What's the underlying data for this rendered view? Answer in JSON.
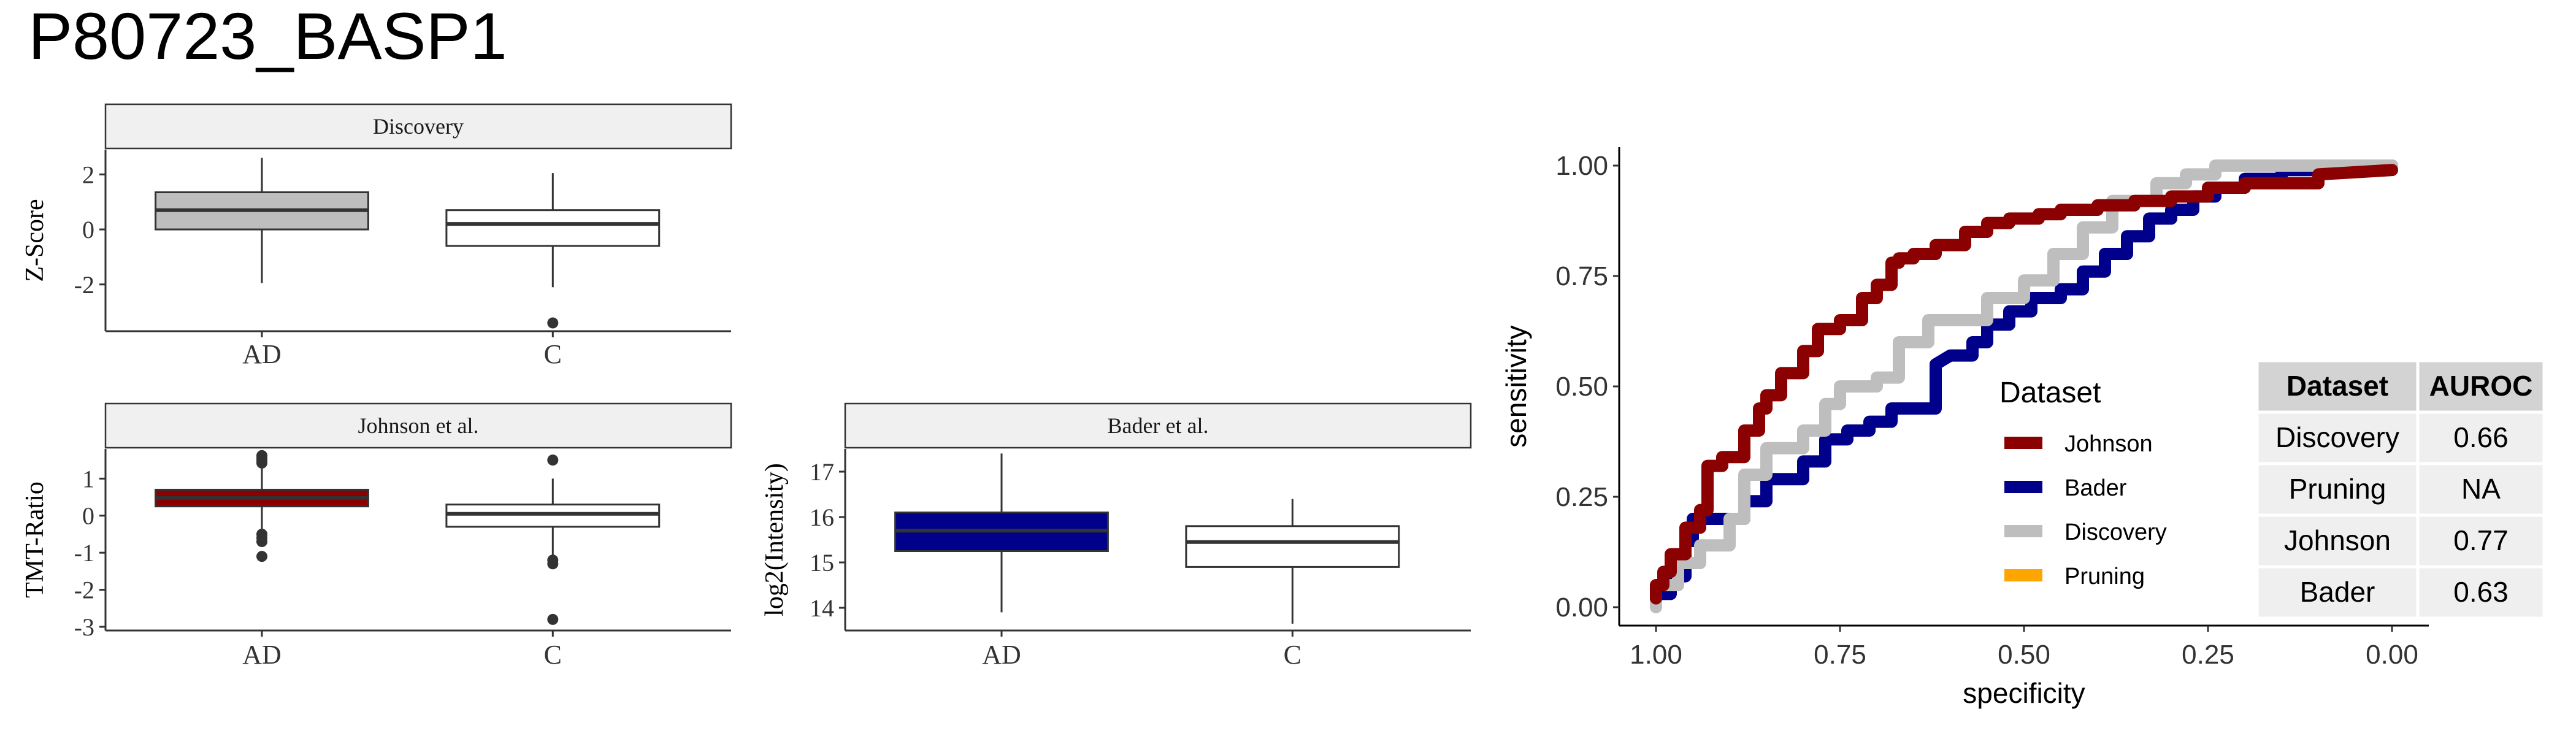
{
  "page": {
    "title": "P80723_BASP1"
  },
  "colors": {
    "johnson": "#8b0000",
    "bader": "#00008b",
    "discovery": "#bebebe",
    "pruning": "#ffa500",
    "strip": "#f0f0f0",
    "table_header": "#d3d3d3",
    "table_cell": "#efefef"
  },
  "chart_data": [
    {
      "type": "box",
      "panel": "Discovery",
      "ylabel": "Z-Score",
      "categories": [
        "AD",
        "C"
      ],
      "yticks": [
        "2",
        "0",
        "-2"
      ],
      "ylim": [
        -3.7,
        2.9
      ],
      "boxes": [
        {
          "category": "AD",
          "fill": "#bebebe",
          "min": -1.95,
          "q1": 0.0,
          "median": 0.7,
          "q3": 1.35,
          "max": 2.6,
          "outliers": []
        },
        {
          "category": "C",
          "fill": "#ffffff",
          "min": -2.1,
          "q1": -0.6,
          "median": 0.2,
          "q3": 0.7,
          "max": 2.05,
          "outliers": [
            -3.4
          ]
        }
      ]
    },
    {
      "type": "box",
      "panel": "Johnson et al.",
      "ylabel": "TMT-Ratio",
      "categories": [
        "AD",
        "C"
      ],
      "yticks": [
        "1",
        "0",
        "-1",
        "-2",
        "-3"
      ],
      "ylim": [
        -3.1,
        1.8
      ],
      "boxes": [
        {
          "category": "AD",
          "fill": "#8b0000",
          "min": -0.45,
          "q1": 0.25,
          "median": 0.48,
          "q3": 0.7,
          "max": 1.3,
          "outliers": [
            1.62,
            1.55,
            1.48,
            1.42,
            -0.5,
            -0.6,
            -0.7,
            -1.1
          ]
        },
        {
          "category": "C",
          "fill": "#ffffff",
          "min": -1.1,
          "q1": -0.3,
          "median": 0.05,
          "q3": 0.3,
          "max": 1.0,
          "outliers": [
            1.5,
            -1.2,
            -1.3,
            -2.8
          ]
        }
      ]
    },
    {
      "type": "box",
      "panel": "Bader et al.",
      "ylabel": "log2(Intensity)",
      "categories": [
        "AD",
        "C"
      ],
      "yticks": [
        "17",
        "16",
        "15",
        "14"
      ],
      "ylim": [
        13.5,
        17.5
      ],
      "boxes": [
        {
          "category": "AD",
          "fill": "#00008b",
          "min": 13.9,
          "q1": 15.25,
          "median": 15.7,
          "q3": 16.1,
          "max": 17.4,
          "outliers": []
        },
        {
          "category": "C",
          "fill": "#ffffff",
          "min": 13.65,
          "q1": 14.9,
          "median": 15.45,
          "q3": 15.8,
          "max": 16.4,
          "outliers": []
        }
      ]
    },
    {
      "type": "line",
      "subtype": "roc",
      "xlabel": "specificity",
      "ylabel": "sensitivity",
      "x_reversed": true,
      "xlim": [
        1.0,
        0.0
      ],
      "ylim": [
        0.0,
        1.0
      ],
      "xticks": [
        "1.00",
        "0.75",
        "0.50",
        "0.25",
        "0.00"
      ],
      "yticks": [
        "1.00",
        "0.75",
        "0.50",
        "0.25",
        "0.00"
      ],
      "legend": {
        "title": "Dataset",
        "entries": [
          "Johnson",
          "Bader",
          "Discovery",
          "Pruning"
        ],
        "placement": "bottom-center"
      },
      "series": [
        {
          "name": "Bader",
          "x": [
            1.0,
            1.0,
            0.98,
            0.98,
            0.96,
            0.96,
            0.95,
            0.95,
            0.88,
            0.88,
            0.85,
            0.85,
            0.8,
            0.8,
            0.77,
            0.77,
            0.74,
            0.74,
            0.71,
            0.71,
            0.68,
            0.68,
            0.62,
            0.62,
            0.6,
            0.57,
            0.57,
            0.55,
            0.55,
            0.52,
            0.52,
            0.49,
            0.49,
            0.45,
            0.45,
            0.42,
            0.42,
            0.39,
            0.39,
            0.36,
            0.36,
            0.33,
            0.33,
            0.3,
            0.3,
            0.27,
            0.27,
            0.24,
            0.24,
            0.2,
            0.2,
            0.15,
            0.15,
            0.1,
            0.1,
            0.05,
            0.0
          ],
          "y": [
            0.01,
            0.03,
            0.03,
            0.07,
            0.07,
            0.15,
            0.15,
            0.2,
            0.2,
            0.24,
            0.24,
            0.29,
            0.29,
            0.33,
            0.33,
            0.38,
            0.38,
            0.4,
            0.4,
            0.42,
            0.42,
            0.45,
            0.45,
            0.55,
            0.57,
            0.57,
            0.6,
            0.6,
            0.64,
            0.64,
            0.67,
            0.67,
            0.7,
            0.7,
            0.72,
            0.72,
            0.76,
            0.76,
            0.8,
            0.8,
            0.84,
            0.84,
            0.88,
            0.88,
            0.9,
            0.9,
            0.93,
            0.93,
            0.95,
            0.95,
            0.97,
            0.97,
            0.99,
            0.99,
            1.0,
            1.0,
            1.0
          ]
        },
        {
          "name": "Discovery",
          "x": [
            1.0,
            1.0,
            0.97,
            0.97,
            0.94,
            0.94,
            0.9,
            0.9,
            0.88,
            0.88,
            0.85,
            0.85,
            0.8,
            0.8,
            0.77,
            0.77,
            0.75,
            0.75,
            0.7,
            0.7,
            0.67,
            0.67,
            0.63,
            0.63,
            0.55,
            0.55,
            0.5,
            0.5,
            0.46,
            0.46,
            0.42,
            0.42,
            0.38,
            0.38,
            0.32,
            0.32,
            0.28,
            0.28,
            0.24,
            0.24,
            0.18,
            0.18,
            0.12,
            0.12,
            0.06,
            0.0
          ],
          "y": [
            0.0,
            0.05,
            0.05,
            0.1,
            0.1,
            0.14,
            0.14,
            0.2,
            0.2,
            0.3,
            0.3,
            0.36,
            0.36,
            0.4,
            0.4,
            0.46,
            0.46,
            0.5,
            0.5,
            0.52,
            0.52,
            0.6,
            0.6,
            0.65,
            0.65,
            0.7,
            0.7,
            0.74,
            0.74,
            0.8,
            0.8,
            0.86,
            0.86,
            0.92,
            0.92,
            0.96,
            0.96,
            0.98,
            0.98,
            1.0,
            1.0,
            1.0,
            1.0,
            1.0,
            1.0,
            1.0
          ]
        },
        {
          "name": "Johnson",
          "x": [
            1.0,
            1.0,
            0.99,
            0.99,
            0.98,
            0.98,
            0.96,
            0.96,
            0.94,
            0.94,
            0.93,
            0.93,
            0.91,
            0.91,
            0.88,
            0.88,
            0.86,
            0.86,
            0.85,
            0.85,
            0.83,
            0.83,
            0.8,
            0.8,
            0.78,
            0.78,
            0.75,
            0.75,
            0.72,
            0.72,
            0.7,
            0.7,
            0.68,
            0.68,
            0.67,
            0.67,
            0.65,
            0.65,
            0.62,
            0.62,
            0.58,
            0.58,
            0.55,
            0.55,
            0.52,
            0.52,
            0.48,
            0.48,
            0.45,
            0.45,
            0.4,
            0.4,
            0.35,
            0.35,
            0.3,
            0.3,
            0.25,
            0.25,
            0.2,
            0.2,
            0.1,
            0.1,
            0.0
          ],
          "y": [
            0.02,
            0.05,
            0.05,
            0.08,
            0.08,
            0.12,
            0.12,
            0.18,
            0.18,
            0.22,
            0.22,
            0.32,
            0.32,
            0.34,
            0.34,
            0.4,
            0.4,
            0.45,
            0.45,
            0.48,
            0.48,
            0.53,
            0.53,
            0.58,
            0.58,
            0.63,
            0.63,
            0.65,
            0.65,
            0.7,
            0.7,
            0.73,
            0.73,
            0.78,
            0.78,
            0.79,
            0.79,
            0.8,
            0.8,
            0.82,
            0.82,
            0.85,
            0.85,
            0.87,
            0.87,
            0.88,
            0.88,
            0.89,
            0.89,
            0.9,
            0.9,
            0.91,
            0.91,
            0.92,
            0.92,
            0.93,
            0.93,
            0.95,
            0.95,
            0.96,
            0.96,
            0.98,
            0.99
          ]
        }
      ]
    }
  ],
  "auroc_table": {
    "headers": [
      "Dataset",
      "AUROC"
    ],
    "rows": [
      [
        "Discovery",
        "0.66"
      ],
      [
        "Pruning",
        "NA"
      ],
      [
        "Johnson",
        "0.77"
      ],
      [
        "Bader",
        "0.63"
      ]
    ]
  }
}
